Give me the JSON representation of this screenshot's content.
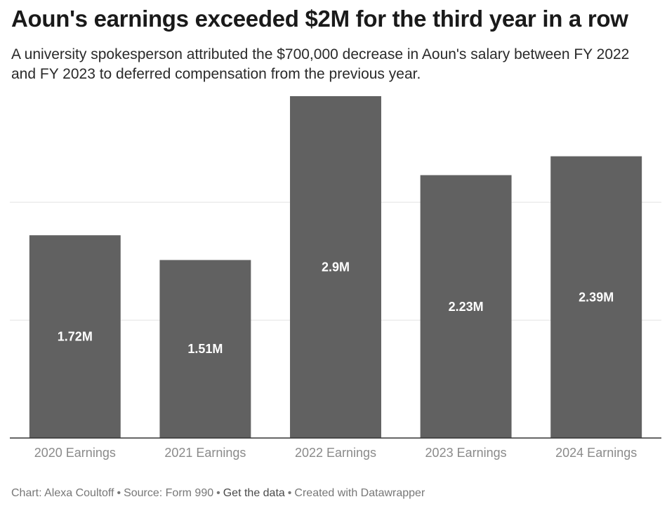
{
  "header": {
    "title": "Aoun's earnings exceeded $2M for the third year in a row",
    "subtitle": "A university spokesperson attributed the $700,000 decrease in Aoun's salary between FY 2022 and FY 2023 to deferred compensation from the previous year."
  },
  "chart_data": {
    "type": "bar",
    "title": "Aoun's earnings exceeded $2M for the third year in a row",
    "subtitle": "A university spokesperson attributed the $700,000 decrease in Aoun's salary between FY 2022 and FY 2023 to deferred compensation from the previous year.",
    "categories": [
      "2020 Earnings",
      "2021 Earnings",
      "2022 Earnings",
      "2023 Earnings",
      "2024 Earnings"
    ],
    "values": [
      1.72,
      1.51,
      2.9,
      2.23,
      2.39
    ],
    "data_labels": [
      "1.72M",
      "1.51M",
      "2.9M",
      "2.23M",
      "2.39M"
    ],
    "unit": "M",
    "xlabel": "",
    "ylabel": "",
    "ylim": [
      0,
      2.9
    ],
    "gridlines": [
      1,
      2
    ],
    "grid": true,
    "bar_color": "#616161",
    "label_color": "#ffffff",
    "grid_color": "#e2e2e2",
    "baseline_color": "#333333"
  },
  "footer": {
    "chart_credit": "Chart: Alexa Coultoff",
    "source": "Source: Form 990",
    "get_data": "Get the data",
    "created_with": "Created with Datawrapper",
    "separator": "•"
  }
}
